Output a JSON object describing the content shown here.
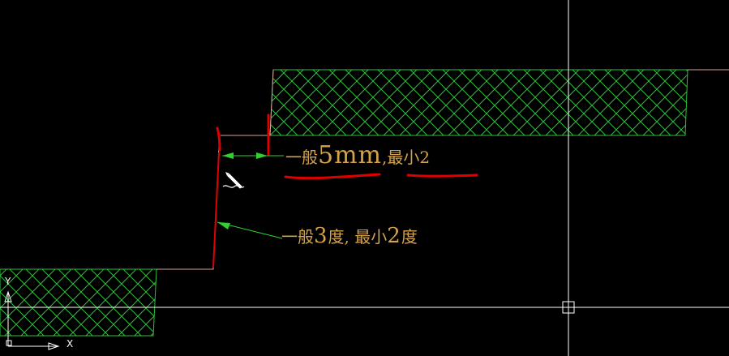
{
  "drawing": {
    "annotations": {
      "gap_note": {
        "prefix": "一般",
        "value": "5mm",
        "suffix": ",最小2"
      },
      "angle_note": {
        "prefix": "一般",
        "value": "3",
        "middle": "度, 最小",
        "value2": "2",
        "suffix": "度"
      }
    },
    "ucs_icon": {
      "x_label": "X",
      "y_label": "Y"
    }
  },
  "colors": {
    "background": "#000000",
    "hatch": "#2fbf3a",
    "outline": "#d9a0a0",
    "markup": "#e00000",
    "dimension": "#30d030",
    "text": "#d4a24a",
    "crosshair": "#ffffff"
  },
  "icons": {
    "cursor": "pencil-cursor-icon",
    "ucs": "ucs-axis-icon"
  }
}
